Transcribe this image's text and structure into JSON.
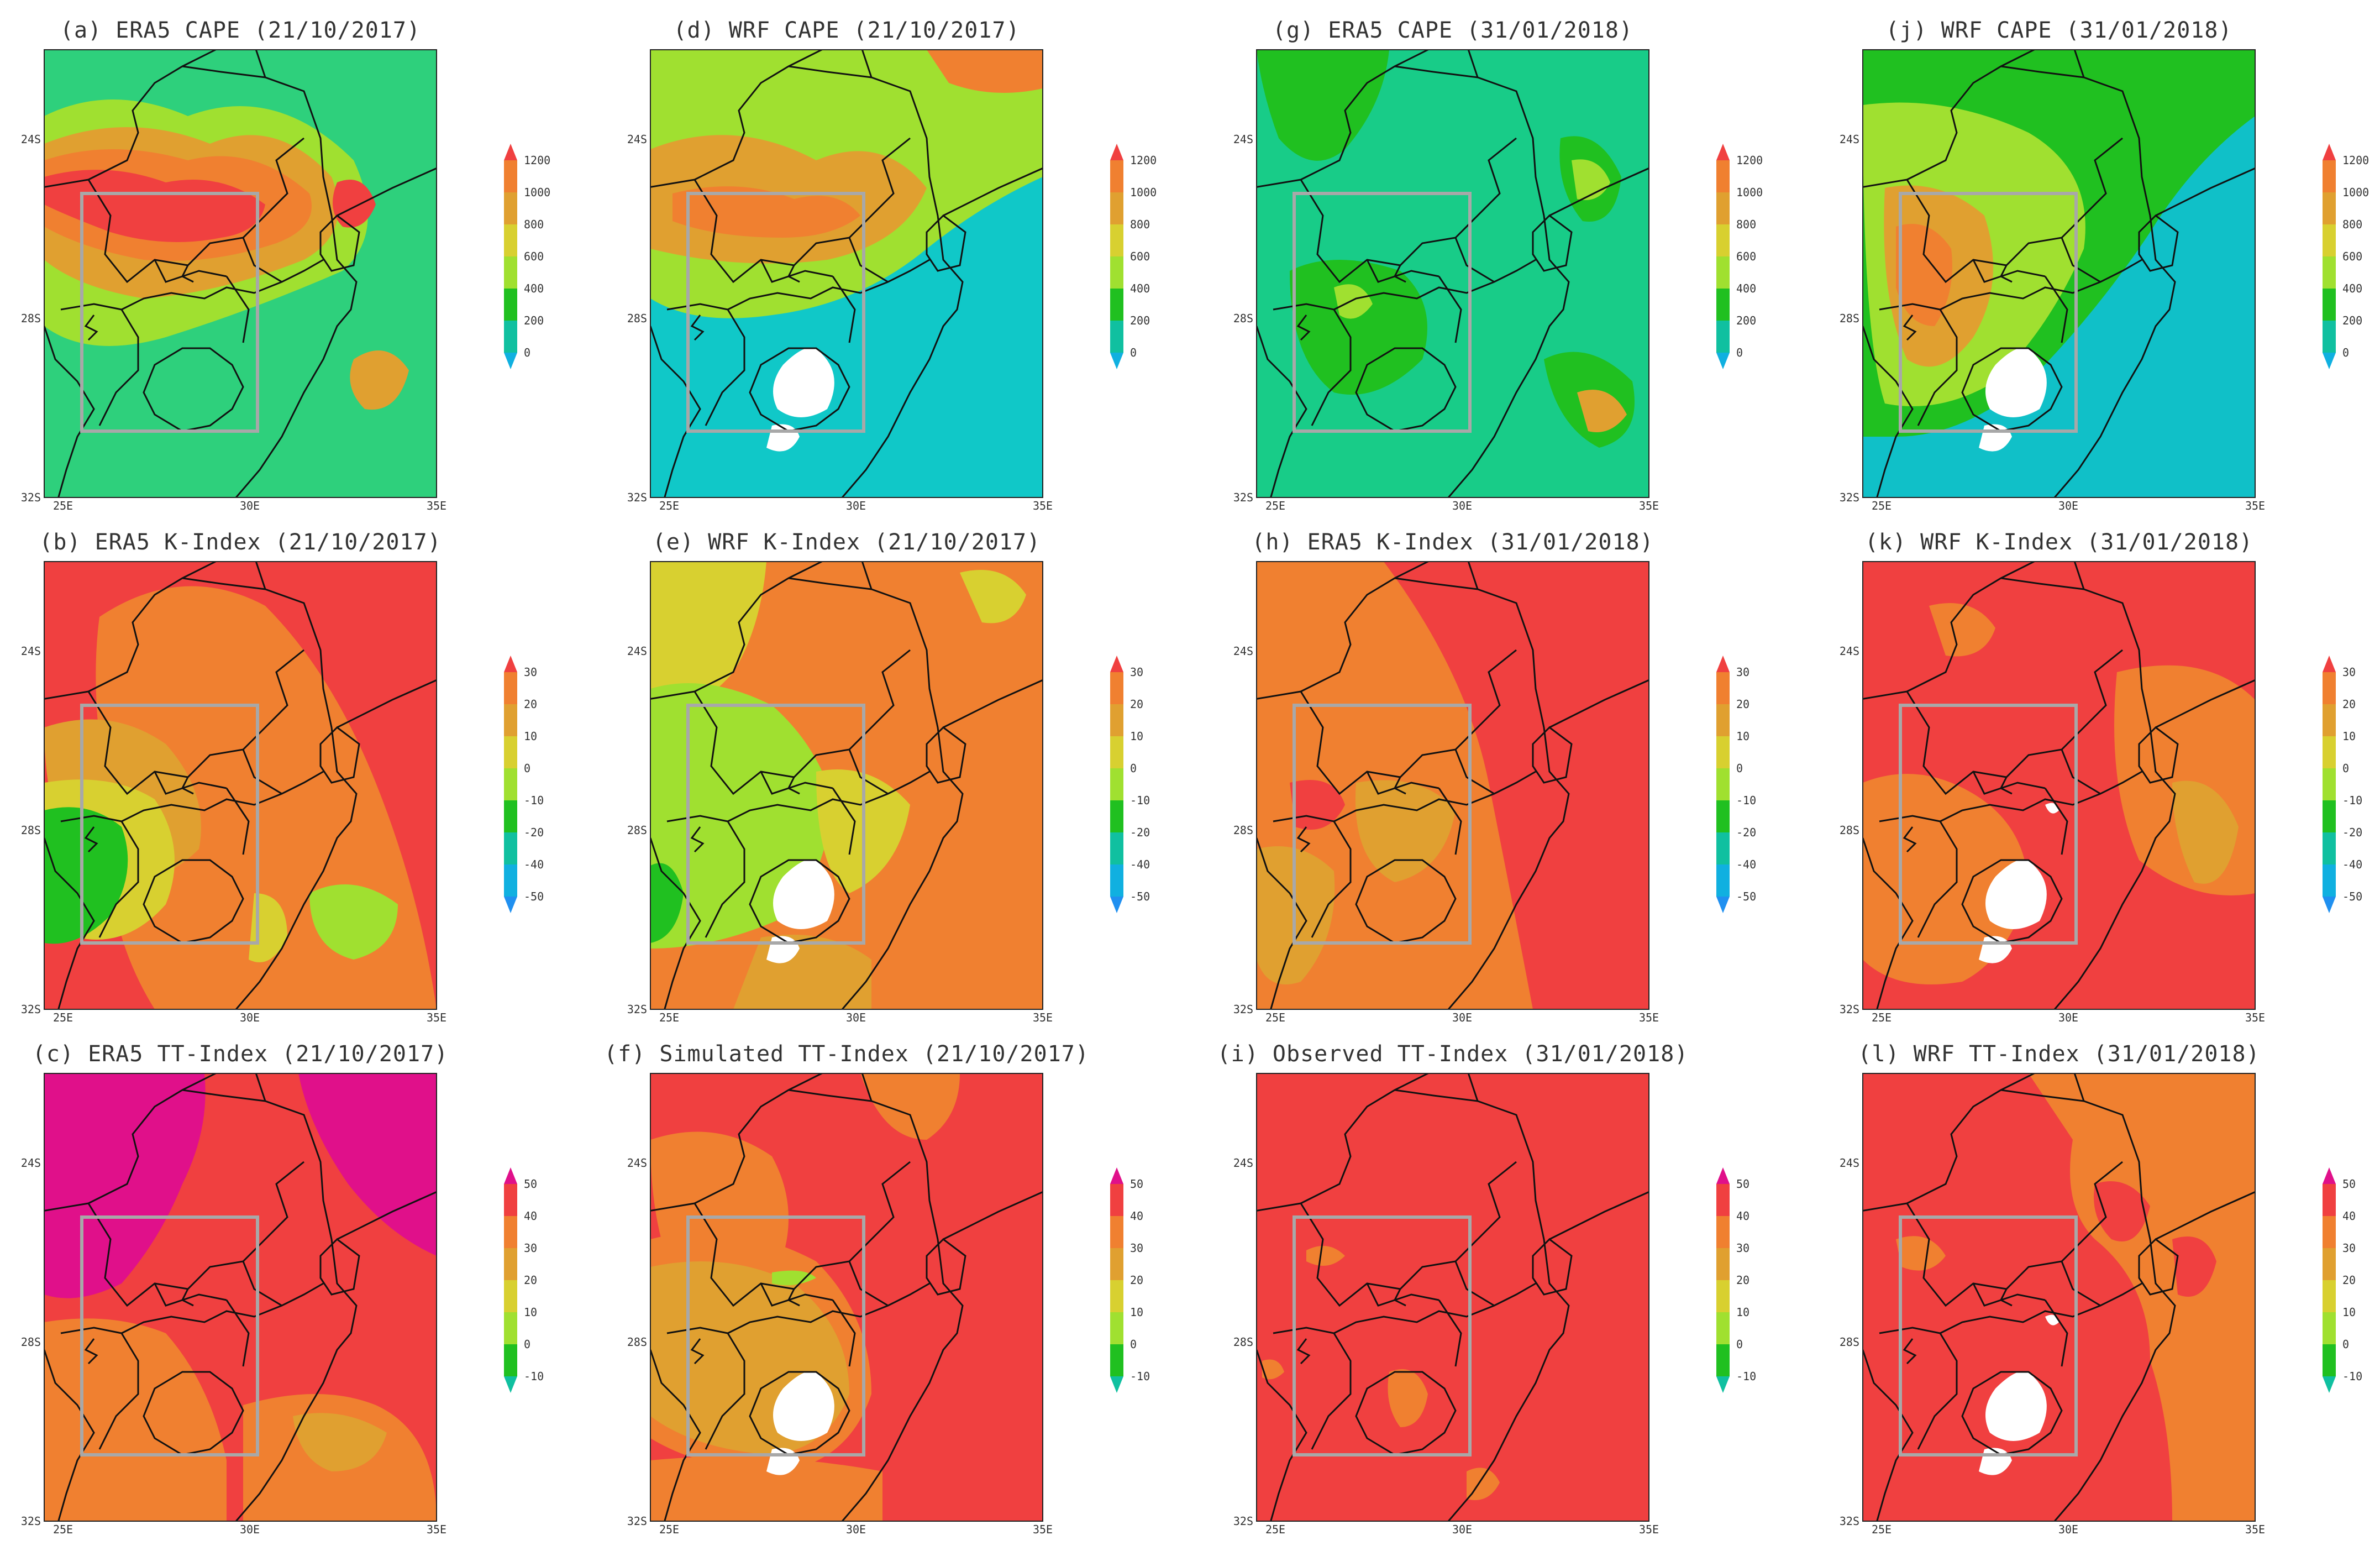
{
  "map_axes": {
    "lat_ticks": [
      "24S",
      "28S",
      "32S"
    ],
    "lon_ticks": [
      "25E",
      "30E",
      "35E"
    ]
  },
  "colorbars": {
    "cape": {
      "labels": [
        "1200",
        "1000",
        "800",
        "600",
        "400",
        "200",
        "0"
      ],
      "colors": [
        "#f04040",
        "#f08030",
        "#e0a030",
        "#d8d030",
        "#a0e030",
        "#20c020",
        "#10c0a0",
        "#10b0e0"
      ]
    },
    "kindex": {
      "labels": [
        "30",
        "20",
        "10",
        "0",
        "-10",
        "-20",
        "-40",
        "-50"
      ],
      "colors": [
        "#f04040",
        "#f08030",
        "#e0a030",
        "#d8d030",
        "#a0e030",
        "#20c020",
        "#10c0a0",
        "#10b0e0",
        "#2090f0"
      ]
    },
    "tt": {
      "labels": [
        "50",
        "40",
        "30",
        "20",
        "10",
        "0",
        "-10"
      ],
      "colors": [
        "#e0108a",
        "#f04040",
        "#f08030",
        "#e0a030",
        "#d8d030",
        "#a0e030",
        "#20c020",
        "#10c0a0"
      ]
    }
  },
  "panels": [
    {
      "id": "a",
      "title": "(a) ERA5 CAPE (21/10/2017)",
      "variable": "cape",
      "base_color": "#2ed07c"
    },
    {
      "id": "d",
      "title": "(d) WRF CAPE (21/10/2017)",
      "variable": "cape",
      "base_color": "#10c8c8"
    },
    {
      "id": "g",
      "title": "(g) ERA5 CAPE (31/01/2018)",
      "variable": "cape",
      "base_color": "#18cc88"
    },
    {
      "id": "j",
      "title": "(j) WRF CAPE (31/01/2018)",
      "variable": "cape",
      "base_color": "#10c0c8"
    },
    {
      "id": "b",
      "title": "(b) ERA5 K-Index (21/10/2017)",
      "variable": "kindex",
      "base_color": "#f04040"
    },
    {
      "id": "e",
      "title": "(e) WRF K-Index (21/10/2017)",
      "variable": "kindex",
      "base_color": "#f08030"
    },
    {
      "id": "h",
      "title": "(h) ERA5 K-Index (31/01/2018)",
      "variable": "kindex",
      "base_color": "#f08030"
    },
    {
      "id": "k",
      "title": "(k) WRF K-Index (31/01/2018)",
      "variable": "kindex",
      "base_color": "#f04040"
    },
    {
      "id": "c",
      "title": "(c) ERA5 TT-Index (21/10/2017)",
      "variable": "tt",
      "base_color": "#f04040"
    },
    {
      "id": "f",
      "title": "(f) Simulated TT-Index (21/10/2017)",
      "variable": "tt",
      "base_color": "#f04040"
    },
    {
      "id": "i",
      "title": "(i) Observed TT-Index (31/01/2018)",
      "variable": "tt",
      "base_color": "#f04040"
    },
    {
      "id": "l",
      "title": "(l) WRF TT-Index (31/01/2018)",
      "variable": "tt",
      "base_color": "#f04040"
    }
  ]
}
